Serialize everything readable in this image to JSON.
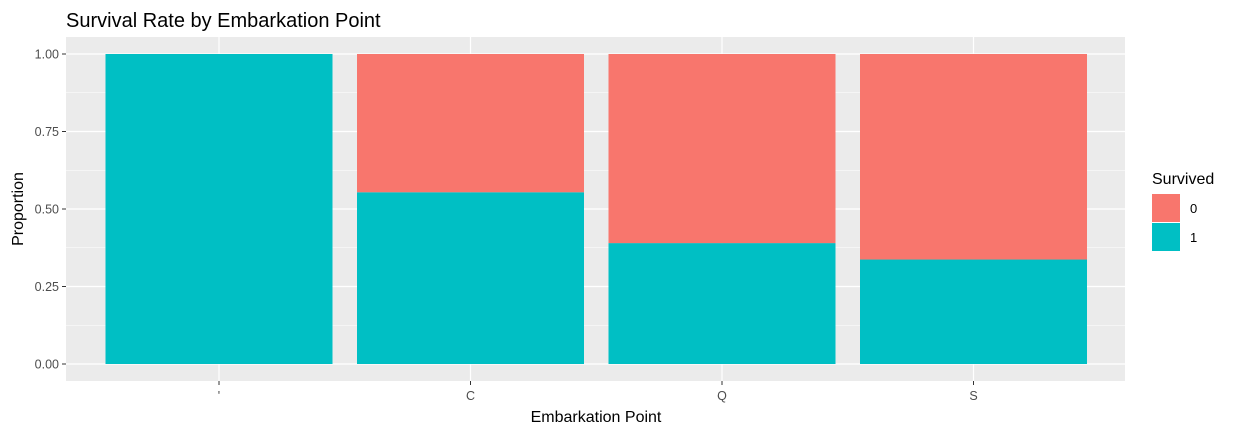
{
  "chart_data": {
    "type": "bar",
    "stacked": true,
    "normalized": true,
    "title": "Survival Rate by Embarkation Point",
    "xlabel": "Embarkation Point",
    "ylabel": "Proportion",
    "categories": [
      "",
      "C",
      "Q",
      "S"
    ],
    "x_tick_labels": [
      "'",
      "C",
      "Q",
      "S"
    ],
    "ylim": [
      0,
      1
    ],
    "y_ticks": [
      0,
      0.25,
      0.5,
      0.75,
      1
    ],
    "y_tick_labels": [
      "0.00",
      "0.25",
      "0.50",
      "0.75",
      "1.00"
    ],
    "series": [
      {
        "name": "1",
        "color": "#00BFC4",
        "values": [
          1.0,
          0.554,
          0.39,
          0.337
        ]
      },
      {
        "name": "0",
        "color": "#F8766D",
        "values": [
          0.0,
          0.446,
          0.61,
          0.663
        ]
      }
    ],
    "legend": {
      "title": "Survived",
      "entries": [
        "0",
        "1"
      ],
      "position": "right"
    },
    "grid": true,
    "panel_background": "#EBEBEB",
    "grid_color": "#FFFFFF"
  }
}
